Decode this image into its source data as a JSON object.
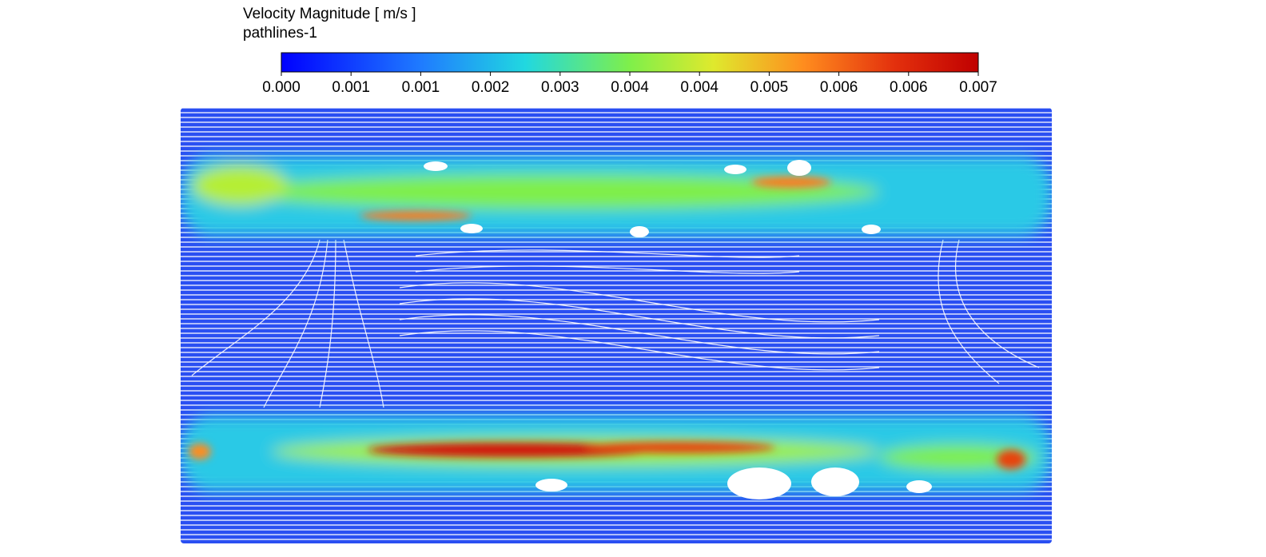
{
  "legend": {
    "title": "Velocity Magnitude [ m/s ]",
    "subtitle": "pathlines-1",
    "ticks": [
      "0.000",
      "0.001",
      "0.001",
      "0.002",
      "0.003",
      "0.004",
      "0.004",
      "0.005",
      "0.006",
      "0.006",
      "0.007"
    ]
  }
}
